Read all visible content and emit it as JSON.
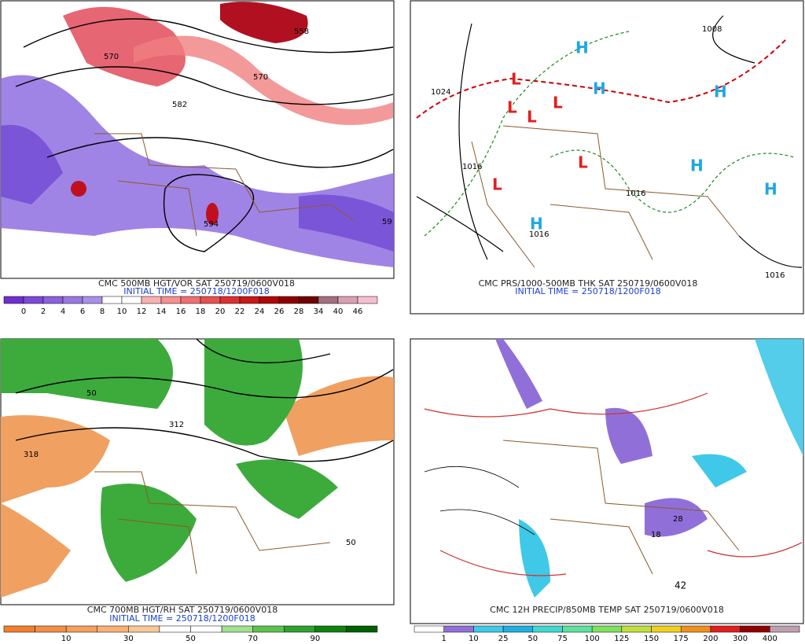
{
  "panels": [
    {
      "caption": "CMC 500MB HGT/VOR SAT 250719/0600V018",
      "initial_time": "INITIAL TIME = 250718/1200F018",
      "map_labels": [
        "570",
        "558",
        "570",
        "582",
        "594",
        "59"
      ],
      "colorbar": {
        "labels": [
          "0",
          "2",
          "4",
          "6",
          "8",
          "10",
          "12",
          "14",
          "16",
          "18",
          "20",
          "22",
          "24",
          "26",
          "28",
          "34",
          "40",
          "46"
        ],
        "colors": [
          "#7030d0",
          "#7e48d8",
          "#8c60de",
          "#9a78e2",
          "#a890e6",
          "#ffffff",
          "#ffffff",
          "#f8b0b0",
          "#f49090",
          "#ee7070",
          "#e65050",
          "#dc3030",
          "#c81818",
          "#b00808",
          "#900000",
          "#700000",
          "#a07080",
          "#d8a0b0",
          "#f4c0d0"
        ]
      }
    },
    {
      "caption": "CMC PRS/1000-500MB THK SAT 250719/0600V018",
      "initial_time": "INITIAL TIME = 250718/1200F018",
      "map_labels": [
        "1024",
        "1008",
        "1016",
        "1016",
        "1016",
        "1016"
      ],
      "low": "L",
      "high": "H"
    },
    {
      "caption": "CMC 700MB HGT/RH SAT 250719/0600V018",
      "initial_time": "INITIAL TIME = 250718/1200F018",
      "map_labels": [
        "50",
        "318",
        "312",
        "50"
      ],
      "colorbar": {
        "labels": [
          "10",
          "30",
          "50",
          "70",
          "90"
        ],
        "colors": [
          "#f08030",
          "#f29048",
          "#f4a060",
          "#f6b078",
          "#f8c898",
          "#ffffff",
          "#ffffff",
          "#a0e090",
          "#60c050",
          "#30a030",
          "#108010",
          "#006000"
        ]
      }
    },
    {
      "caption": "CMC 12H PRECIP/850MB TEMP SAT 250719/0600V018",
      "map_labels": [
        "42",
        "28",
        "18"
      ],
      "colorbar": {
        "labels": [
          "1",
          "10",
          "25",
          "50",
          "75",
          "100",
          "125",
          "150",
          "175",
          "200",
          "300",
          "400"
        ],
        "colors": [
          "#ffffff",
          "#9070d8",
          "#40c8e8",
          "#20b0e0",
          "#40d8d0",
          "#60e0a0",
          "#80e060",
          "#c0e040",
          "#f0d020",
          "#f09020",
          "#e02020",
          "#900000",
          "#c0a0b0"
        ]
      }
    }
  ]
}
